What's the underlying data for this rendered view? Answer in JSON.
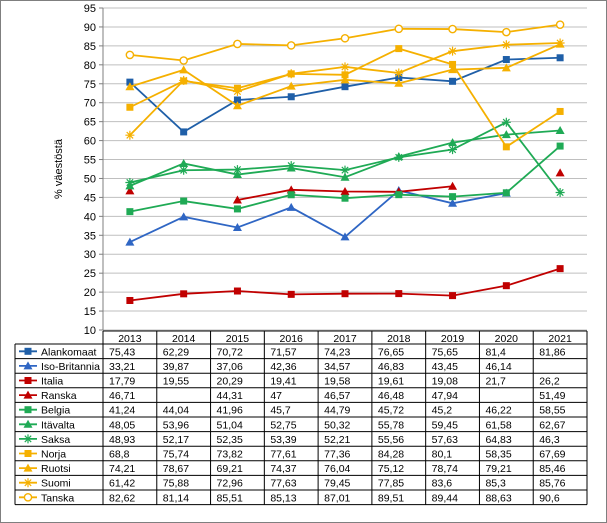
{
  "chart_data": {
    "type": "line",
    "ylabel": "% väestöstä",
    "ylim": [
      10,
      95
    ],
    "yticks": [
      10,
      15,
      20,
      25,
      30,
      35,
      40,
      45,
      50,
      55,
      60,
      65,
      70,
      75,
      80,
      85,
      90,
      95
    ],
    "grid": "horizontal",
    "legend": "table below chart",
    "categories": [
      "2013",
      "2014",
      "2015",
      "2016",
      "2017",
      "2018",
      "2019",
      "2020",
      "2021"
    ],
    "series": [
      {
        "name": "Alankomaat",
        "color": "#1f5fa8",
        "marker": "square",
        "values": [
          75.43,
          62.29,
          70.72,
          71.57,
          74.23,
          76.65,
          75.65,
          81.4,
          81.86
        ],
        "labels": [
          "75,43",
          "62,29",
          "70,72",
          "71,57",
          "74,23",
          "76,65",
          "75,65",
          "81,4",
          "81,86"
        ]
      },
      {
        "name": "Iso-Britannia",
        "color": "#2f66c4",
        "marker": "triangle",
        "values": [
          33.21,
          39.87,
          37.06,
          42.36,
          34.57,
          46.83,
          43.45,
          46.14,
          null
        ],
        "labels": [
          "33,21",
          "39,87",
          "37,06",
          "42,36",
          "34,57",
          "46,83",
          "43,45",
          "46,14",
          ""
        ]
      },
      {
        "name": "Italia",
        "color": "#c00000",
        "marker": "square",
        "values": [
          17.79,
          19.55,
          20.29,
          19.41,
          19.58,
          19.61,
          19.08,
          21.7,
          26.2
        ],
        "labels": [
          "17,79",
          "19,55",
          "20,29",
          "19,41",
          "19,58",
          "19,61",
          "19,08",
          "21,7",
          "26,2"
        ]
      },
      {
        "name": "Ranska",
        "color": "#c00000",
        "marker": "triangle",
        "values": [
          46.71,
          null,
          44.31,
          47,
          46.57,
          46.48,
          47.94,
          null,
          51.49
        ],
        "labels": [
          "46,71",
          "",
          "44,31",
          "47",
          "46,57",
          "46,48",
          "47,94",
          "",
          "51,49"
        ]
      },
      {
        "name": "Belgia",
        "color": "#1faa55",
        "marker": "square",
        "values": [
          41.24,
          44.04,
          41.96,
          45.7,
          44.79,
          45.72,
          45.2,
          46.22,
          58.55
        ],
        "labels": [
          "41,24",
          "44,04",
          "41,96",
          "45,7",
          "44,79",
          "45,72",
          "45,2",
          "46,22",
          "58,55"
        ]
      },
      {
        "name": "Itävalta",
        "color": "#1faa55",
        "marker": "triangle",
        "values": [
          48.05,
          53.96,
          51.04,
          52.75,
          50.32,
          55.78,
          59.45,
          61.58,
          62.67
        ],
        "labels": [
          "48,05",
          "53,96",
          "51,04",
          "52,75",
          "50,32",
          "55,78",
          "59,45",
          "61,58",
          "62,67"
        ]
      },
      {
        "name": "Saksa",
        "color": "#1faa55",
        "marker": "star",
        "values": [
          48.93,
          52.17,
          52.35,
          53.39,
          52.21,
          55.56,
          57.63,
          64.83,
          46.3
        ],
        "labels": [
          "48,93",
          "52,17",
          "52,35",
          "53,39",
          "52,21",
          "55,56",
          "57,63",
          "64,83",
          "46,3"
        ]
      },
      {
        "name": "Norja",
        "color": "#f5b000",
        "marker": "square",
        "values": [
          68.8,
          75.74,
          73.82,
          77.61,
          77.36,
          84.28,
          80.1,
          58.35,
          67.69
        ],
        "labels": [
          "68,8",
          "75,74",
          "73,82",
          "77,61",
          "77,36",
          "84,28",
          "80,1",
          "58,35",
          "67,69"
        ]
      },
      {
        "name": "Ruotsi",
        "color": "#f5b000",
        "marker": "triangle",
        "values": [
          74.21,
          78.67,
          69.21,
          74.37,
          76.04,
          75.12,
          78.74,
          79.21,
          85.46
        ],
        "labels": [
          "74,21",
          "78,67",
          "69,21",
          "74,37",
          "76,04",
          "75,12",
          "78,74",
          "79,21",
          "85,46"
        ]
      },
      {
        "name": "Suomi",
        "color": "#f5b000",
        "marker": "star",
        "values": [
          61.42,
          75.88,
          72.96,
          77.63,
          79.45,
          77.85,
          83.6,
          85.3,
          85.76
        ],
        "labels": [
          "61,42",
          "75,88",
          "72,96",
          "77,63",
          "79,45",
          "77,85",
          "83,6",
          "85,3",
          "85,76"
        ]
      },
      {
        "name": "Tanska",
        "color": "#f5b000",
        "marker": "circle",
        "values": [
          82.62,
          81.14,
          85.51,
          85.13,
          87.01,
          89.51,
          89.44,
          88.63,
          90.6
        ],
        "labels": [
          "82,62",
          "81,14",
          "85,51",
          "85,13",
          "87,01",
          "89,51",
          "89,44",
          "88,63",
          "90,6"
        ]
      }
    ]
  }
}
